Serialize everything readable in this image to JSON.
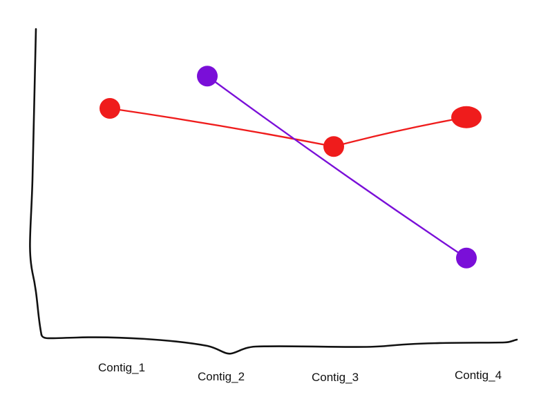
{
  "chart_data": {
    "type": "line",
    "categories": [
      "Contig_1",
      "Contig_2",
      "Contig_3",
      "Contig_4"
    ],
    "ylim": [
      0,
      10
    ],
    "grid": false,
    "legend": "none",
    "series": [
      {
        "x": [
          "Contig_1",
          "Contig_3",
          "Contig_4"
        ],
        "values": [
          7.6,
          6.3,
          7.3
        ],
        "color": "#ef1c1c"
      },
      {
        "x": [
          "Contig_2",
          "Contig_4"
        ],
        "values": [
          8.7,
          2.5
        ],
        "color": "#7a0fd8"
      }
    ]
  }
}
